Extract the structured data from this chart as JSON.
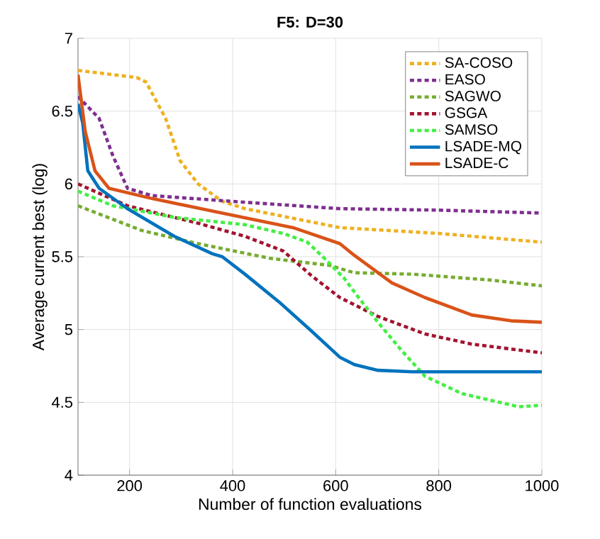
{
  "chart_data": {
    "type": "line",
    "title": "F5: D=30",
    "xlabel": "Number of function evaluations",
    "ylabel": "Average current best (log)",
    "xlim": [
      100,
      1000
    ],
    "ylim": [
      4,
      7
    ],
    "xticks": [
      200,
      400,
      600,
      800,
      1000
    ],
    "yticks": [
      4,
      4.5,
      5,
      5.5,
      6,
      6.5,
      7
    ],
    "grid": true,
    "legend": "top right",
    "series": [
      {
        "name": "SA-COSO",
        "color": "#edb120",
        "line_style": "dotted",
        "x": [
          100,
          214,
          232,
          270,
          298,
          333,
          380,
          424,
          608,
          800,
          1000
        ],
        "values": [
          6.78,
          6.73,
          6.7,
          6.45,
          6.16,
          6.0,
          5.88,
          5.83,
          5.7,
          5.66,
          5.6
        ]
      },
      {
        "name": "EASO",
        "color": "#7e2f8e",
        "line_style": "dotted",
        "x": [
          100,
          141,
          168,
          196,
          243,
          400,
          608,
          800,
          1000
        ],
        "values": [
          6.6,
          6.45,
          6.19,
          5.97,
          5.92,
          5.88,
          5.83,
          5.82,
          5.8
        ]
      },
      {
        "name": "SAGWO",
        "color": "#77ac30",
        "line_style": "dotted",
        "x": [
          100,
          224,
          333,
          471,
          589,
          636,
          750,
          900,
          1000
        ],
        "values": [
          5.85,
          5.68,
          5.59,
          5.49,
          5.44,
          5.39,
          5.38,
          5.34,
          5.3
        ]
      },
      {
        "name": "GSGA",
        "color": "#a2142f",
        "line_style": "dotted",
        "x": [
          100,
          196,
          333,
          424,
          498,
          553,
          608,
          682,
          773,
          864,
          1000
        ],
        "values": [
          6.0,
          5.85,
          5.73,
          5.64,
          5.54,
          5.37,
          5.22,
          5.09,
          4.97,
          4.9,
          4.84
        ]
      },
      {
        "name": "SAMSO",
        "color": "#44ee44",
        "line_style": "dotted",
        "x": [
          100,
          168,
          287,
          424,
          498,
          545,
          581,
          617,
          640,
          682,
          727,
          773,
          845,
          955,
          1000
        ],
        "values": [
          5.95,
          5.85,
          5.77,
          5.72,
          5.66,
          5.6,
          5.48,
          5.35,
          5.24,
          5.05,
          4.86,
          4.68,
          4.56,
          4.47,
          4.48
        ]
      },
      {
        "name": "LSADE-MQ",
        "color": "#0072bd",
        "line_style": "solid",
        "x": [
          100,
          109,
          119,
          141,
          196,
          287,
          361,
          380,
          424,
          490,
          553,
          608,
          636,
          682,
          750,
          1000
        ],
        "values": [
          6.55,
          6.42,
          6.09,
          5.97,
          5.83,
          5.64,
          5.52,
          5.5,
          5.38,
          5.19,
          4.99,
          4.81,
          4.76,
          4.72,
          4.71,
          4.71
        ]
      },
      {
        "name": "LSADE-C",
        "color": "#d95319",
        "line_style": "solid",
        "x": [
          100,
          114,
          133,
          160,
          243,
          380,
          517,
          608,
          636,
          709,
          773,
          864,
          940,
          1000
        ],
        "values": [
          6.75,
          6.36,
          6.09,
          5.97,
          5.9,
          5.8,
          5.7,
          5.59,
          5.51,
          5.32,
          5.22,
          5.1,
          5.06,
          5.05
        ]
      }
    ]
  }
}
